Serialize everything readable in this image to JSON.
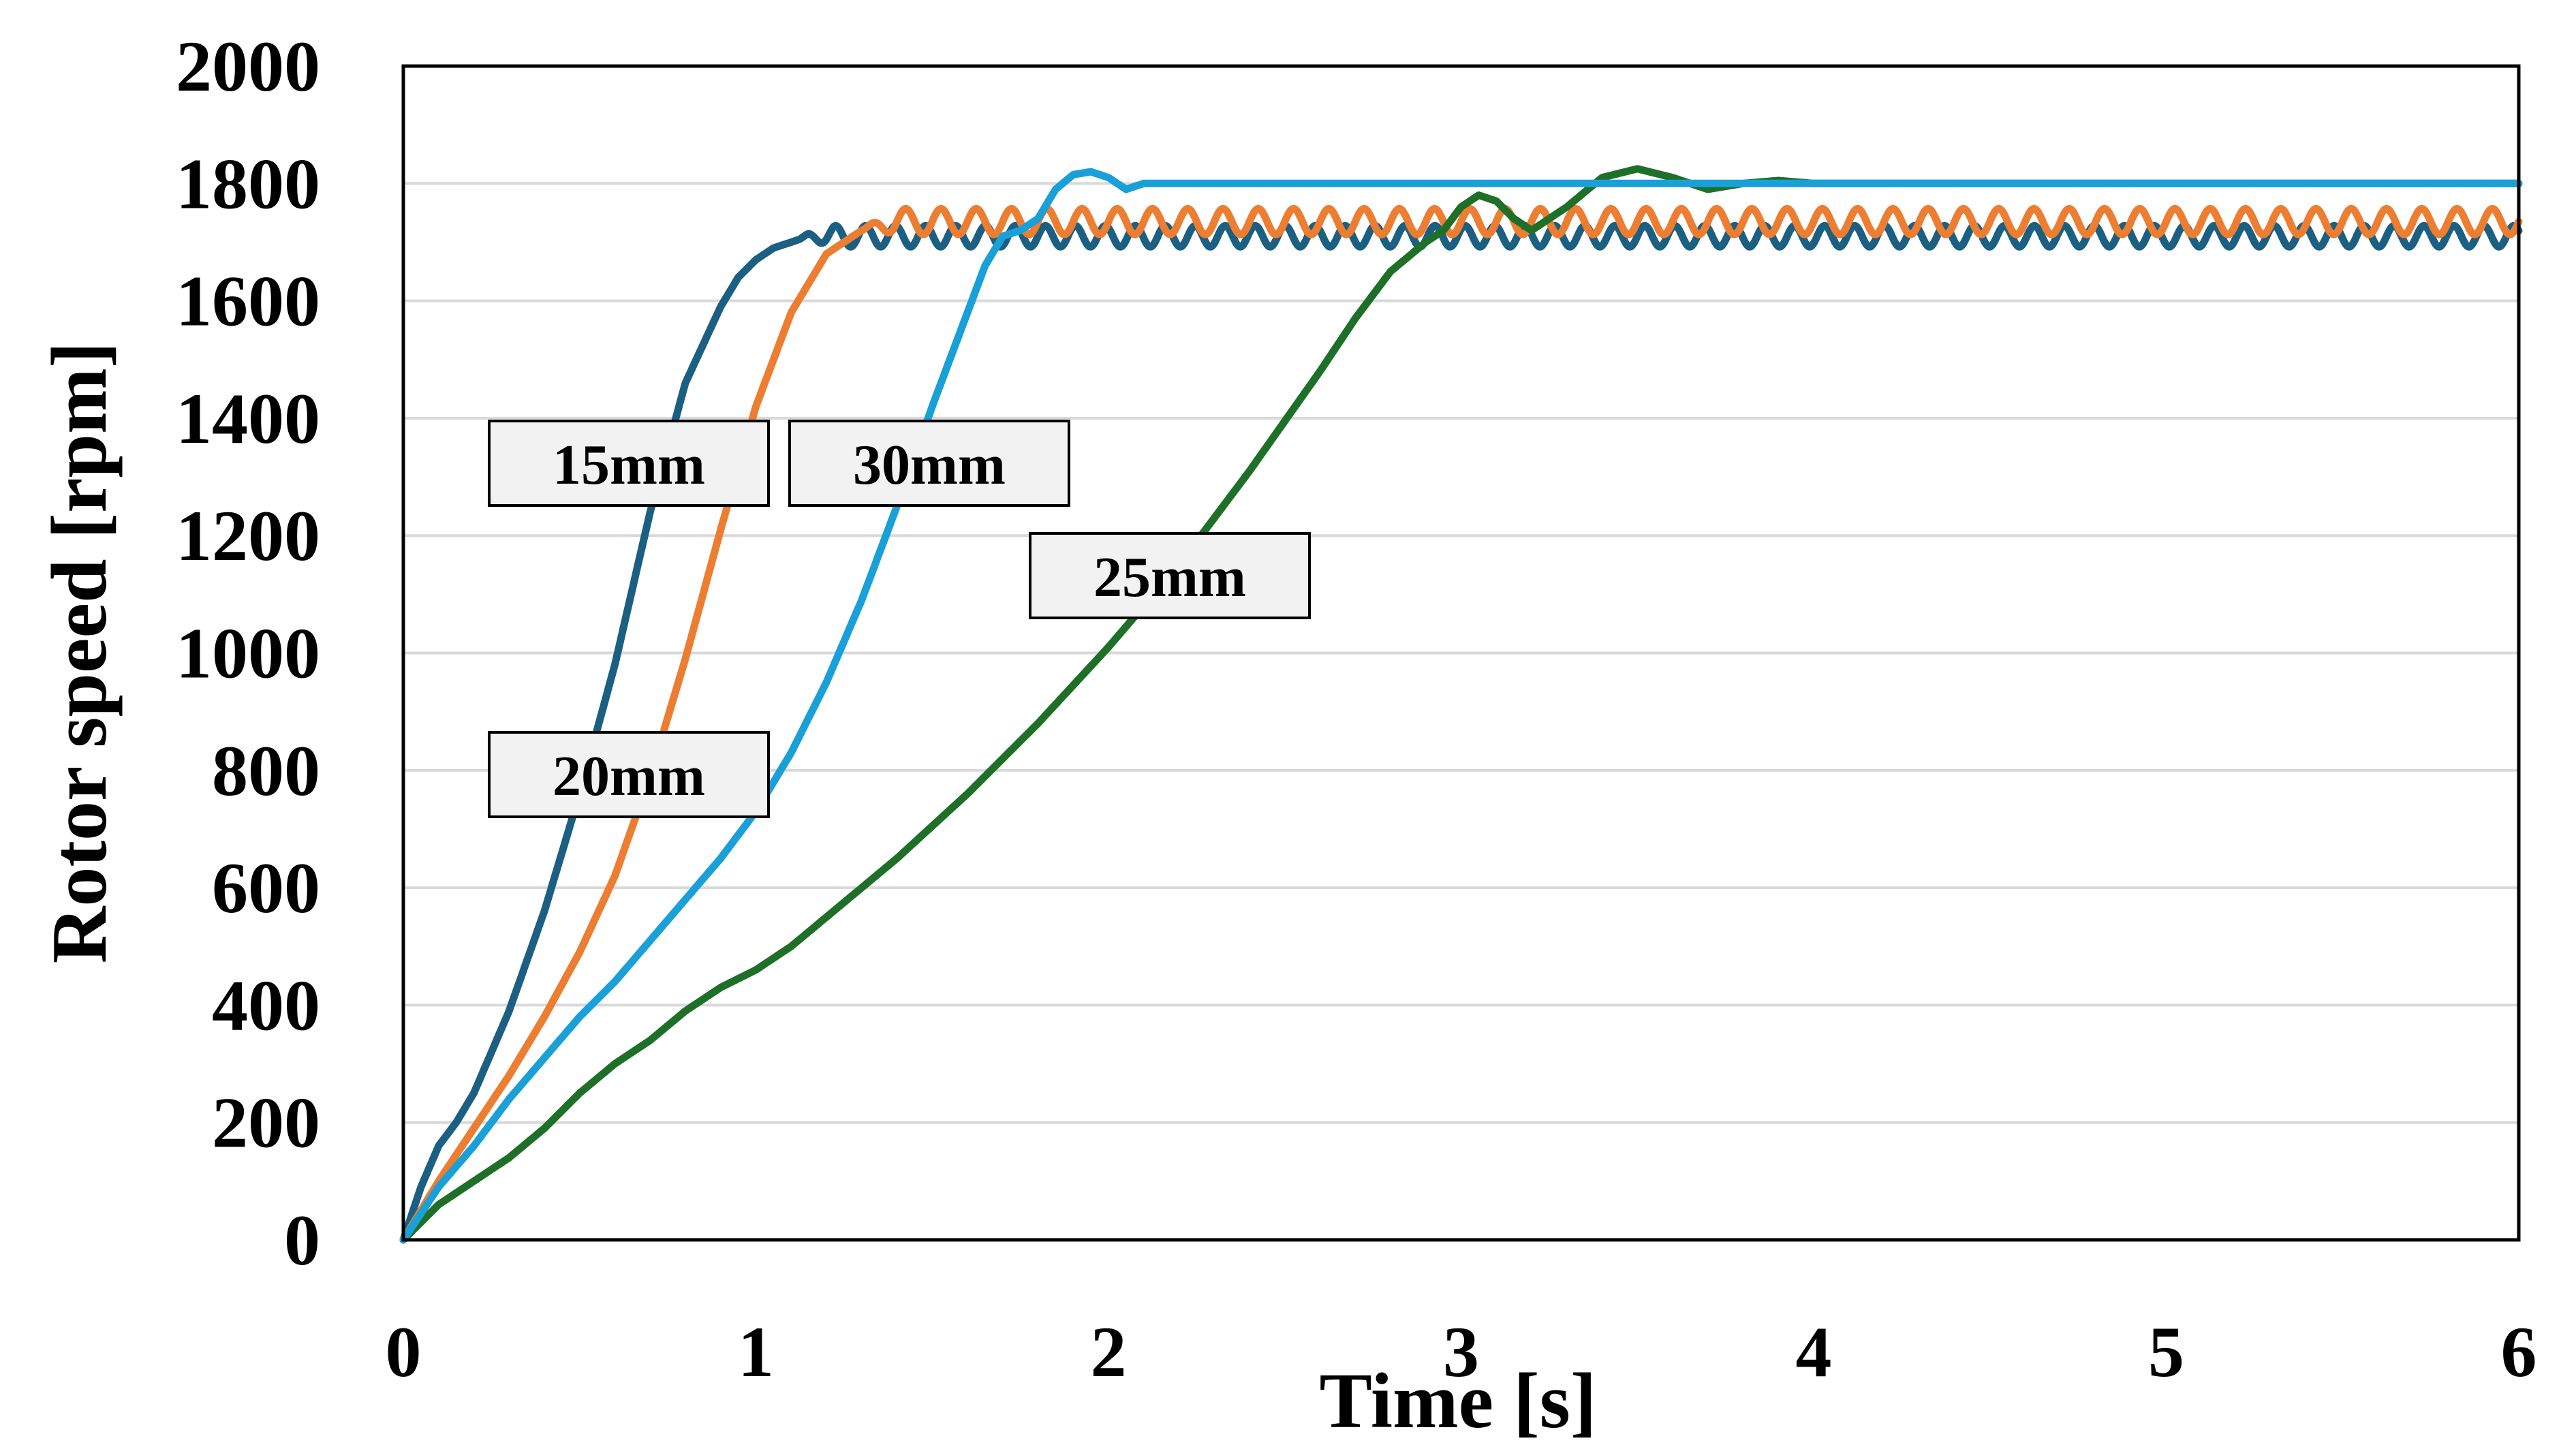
{
  "chart_data": {
    "type": "line",
    "title": "",
    "xlabel": "Time [s]",
    "ylabel": "Rotor speed [rpm]",
    "xlim": [
      0,
      6
    ],
    "ylim": [
      0,
      2000
    ],
    "xticks": [
      "0",
      "1",
      "2",
      "3",
      "4",
      "5",
      "6"
    ],
    "yticks": [
      "0",
      "200",
      "400",
      "600",
      "800",
      "1000",
      "1200",
      "1400",
      "1600",
      "1800",
      "2000"
    ],
    "grid": "horizontal",
    "legend": "none",
    "series": [
      {
        "name": "15mm",
        "color": "#1b5f82",
        "ripple": {
          "from_x": 1.12,
          "amplitude": 18,
          "period": 0.085
        },
        "x": [
          0,
          0.05,
          0.1,
          0.15,
          0.2,
          0.3,
          0.4,
          0.5,
          0.6,
          0.7,
          0.8,
          0.9,
          0.95,
          1.0,
          1.05,
          1.1,
          1.15,
          1.2,
          6.0
        ],
        "y": [
          0,
          90,
          160,
          200,
          250,
          390,
          560,
          760,
          980,
          1240,
          1460,
          1590,
          1640,
          1670,
          1690,
          1700,
          1710,
          1710,
          1710
        ]
      },
      {
        "name": "20mm",
        "color": "#ed7d31",
        "ripple": {
          "from_x": 1.3,
          "amplitude": 22,
          "period": 0.1
        },
        "x": [
          0,
          0.1,
          0.2,
          0.3,
          0.4,
          0.5,
          0.6,
          0.7,
          0.8,
          0.9,
          1.0,
          1.1,
          1.2,
          1.3,
          1.35,
          1.4,
          6.0
        ],
        "y": [
          0,
          100,
          190,
          280,
          380,
          490,
          620,
          790,
          990,
          1210,
          1420,
          1580,
          1680,
          1720,
          1730,
          1735,
          1735
        ]
      },
      {
        "name": "25mm",
        "color": "#1e7029",
        "x": [
          0,
          0.1,
          0.2,
          0.3,
          0.4,
          0.5,
          0.6,
          0.7,
          0.8,
          0.9,
          1.0,
          1.1,
          1.2,
          1.4,
          1.6,
          1.8,
          2.0,
          2.2,
          2.4,
          2.6,
          2.7,
          2.8,
          2.9,
          2.95,
          3.0,
          3.05,
          3.1,
          3.15,
          3.2,
          3.3,
          3.4,
          3.5,
          3.6,
          3.7,
          3.8,
          3.9,
          4.0,
          4.2,
          6.0
        ],
        "y": [
          0,
          60,
          100,
          140,
          190,
          250,
          300,
          340,
          390,
          430,
          460,
          500,
          550,
          650,
          760,
          880,
          1010,
          1150,
          1310,
          1480,
          1570,
          1650,
          1700,
          1720,
          1760,
          1780,
          1770,
          1740,
          1720,
          1760,
          1810,
          1825,
          1810,
          1790,
          1800,
          1805,
          1800,
          1800,
          1800
        ]
      },
      {
        "name": "30mm",
        "color": "#1aa0d9",
        "x": [
          0,
          0.1,
          0.2,
          0.3,
          0.4,
          0.5,
          0.6,
          0.7,
          0.8,
          0.9,
          1.0,
          1.1,
          1.2,
          1.3,
          1.4,
          1.5,
          1.6,
          1.65,
          1.7,
          1.75,
          1.8,
          1.85,
          1.9,
          1.95,
          2.0,
          2.05,
          2.1,
          2.2,
          2.3,
          6.0
        ],
        "y": [
          0,
          90,
          160,
          240,
          310,
          380,
          440,
          510,
          580,
          650,
          730,
          830,
          950,
          1090,
          1250,
          1420,
          1580,
          1660,
          1710,
          1720,
          1740,
          1790,
          1815,
          1820,
          1810,
          1790,
          1800,
          1800,
          1800,
          1800
        ]
      }
    ],
    "labels": [
      {
        "text": "15mm"
      },
      {
        "text": "30mm"
      },
      {
        "text": "25mm"
      },
      {
        "text": "20mm"
      }
    ]
  }
}
